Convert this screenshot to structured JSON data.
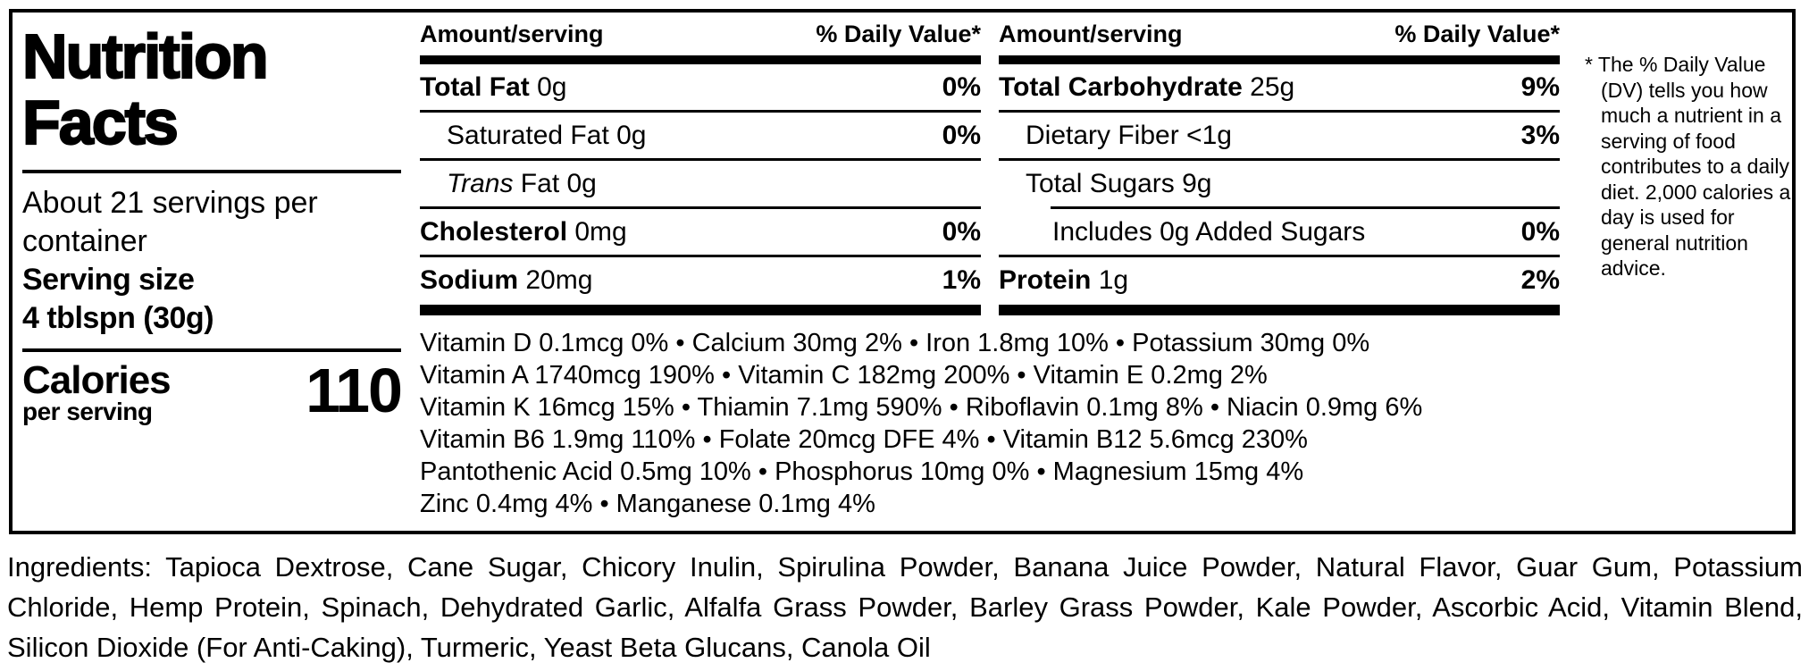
{
  "colors": {
    "text": "#000000",
    "background": "#ffffff"
  },
  "nutrition_label": {
    "title_line1": "Nutrition",
    "title_line2": "Facts",
    "servings_per_container": "About 21 servings per container",
    "serving_size_label": "Serving size",
    "serving_size_value": "4 tblspn (30g)",
    "calories_label": "Calories",
    "calories_sublabel": "per serving",
    "calories_value": "110",
    "columns": [
      {
        "header_amount": "Amount/serving",
        "header_dv": "% Daily Value*",
        "rows": [
          {
            "bold": "Total Fat",
            "italic": "",
            "regular": " 0g",
            "dv": "0%"
          },
          {
            "bold": "",
            "italic": "",
            "regular": "Saturated Fat 0g",
            "dv": "0%"
          },
          {
            "bold": "",
            "italic": "Trans",
            "regular": " Fat 0g",
            "dv": ""
          },
          {
            "bold": "Cholesterol",
            "italic": "",
            "regular": " 0mg",
            "dv": "0%"
          },
          {
            "bold": "Sodium",
            "italic": "",
            "regular": " 20mg",
            "dv": "1%"
          }
        ]
      },
      {
        "header_amount": "Amount/serving",
        "header_dv": "% Daily Value*",
        "rows": [
          {
            "bold": "Total Carbohydrate",
            "italic": "",
            "regular": " 25g",
            "dv": "9%"
          },
          {
            "bold": "",
            "italic": "",
            "regular": "Dietary Fiber <1g",
            "dv": "3%"
          },
          {
            "bold": "",
            "italic": "",
            "regular": "Total Sugars 9g",
            "dv": ""
          },
          {
            "bold": "",
            "italic": "",
            "regular": "Includes 0g Added Sugars",
            "dv": "0%"
          },
          {
            "bold": "Protein",
            "italic": "",
            "regular": " 1g",
            "dv": "2%"
          }
        ]
      }
    ],
    "vitamins_lines": [
      "Vitamin D 0.1mcg 0% • Calcium 30mg 2% • Iron 1.8mg 10% • Potassium 30mg 0%",
      "Vitamin A 1740mcg 190% • Vitamin C 182mg 200% • Vitamin E 0.2mg 2%",
      "Vitamin K 16mcg 15% • Thiamin 7.1mg 590% • Riboflavin 0.1mg 8% • Niacin 0.9mg 6%",
      "Vitamin B6 1.9mg 110% • Folate 20mcg DFE 4% • Vitamin B12 5.6mcg 230%",
      "Pantothenic Acid 0.5mg 10% • Phosphorus 10mg 0% • Magnesium 15mg 4%",
      "Zinc 0.4mg 4% • Manganese 0.1mg 4%"
    ],
    "footnote": "* The % Daily Value (DV) tells you how much a nutrient in a serving of food contributes to a daily diet. 2,000 calories a day is used for general nutrition advice.",
    "ingredients": "Ingredients: Tapioca Dextrose, Cane Sugar, Chicory Inulin, Spirulina Powder, Banana Juice Powder, Natural Flavor, Guar Gum, Potassium Chloride, Hemp Protein, Spinach, Dehydrated Garlic, Alfalfa Grass Powder, Barley Grass Powder, Kale Powder, Ascorbic Acid, Vitamin Blend, Silicon Dioxide (For Anti-Caking), Turmeric, Yeast Beta Glucans, Canola Oil"
  }
}
